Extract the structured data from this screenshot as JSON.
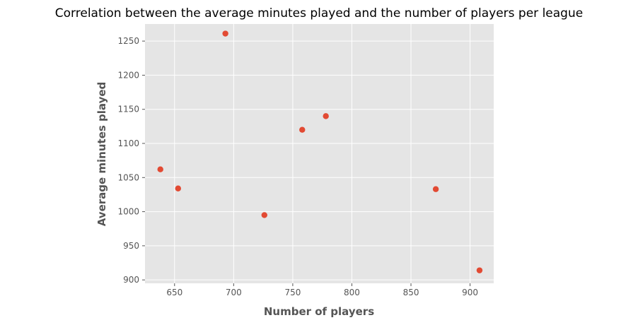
{
  "chart_data": {
    "type": "scatter",
    "title": "Correlation between the average minutes played and the number of players per league",
    "xlabel": "Number of players",
    "ylabel": "Average minutes played",
    "xlim": [
      625,
      920
    ],
    "ylim": [
      895,
      1275
    ],
    "xticks": [
      650,
      700,
      750,
      800,
      850,
      900
    ],
    "yticks": [
      900,
      950,
      1000,
      1050,
      1100,
      1150,
      1200,
      1250
    ],
    "grid": true,
    "style": "ggplot",
    "marker_color": "#e24a33",
    "points": [
      {
        "x": 638,
        "y": 1062
      },
      {
        "x": 653,
        "y": 1034
      },
      {
        "x": 693,
        "y": 1261
      },
      {
        "x": 726,
        "y": 995
      },
      {
        "x": 758,
        "y": 1120
      },
      {
        "x": 778,
        "y": 1140
      },
      {
        "x": 871,
        "y": 1033
      },
      {
        "x": 908,
        "y": 914
      }
    ]
  }
}
